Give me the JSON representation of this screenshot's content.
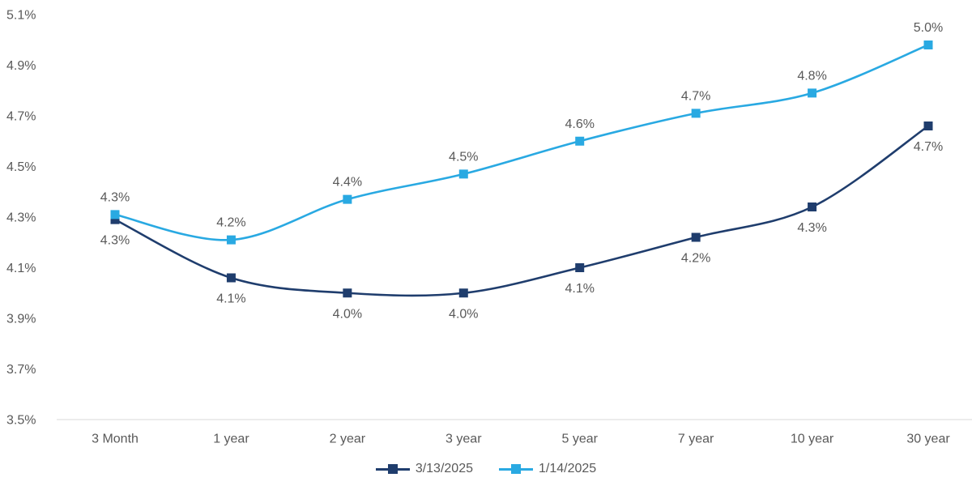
{
  "chart_data": {
    "type": "line",
    "title": "",
    "categories": [
      "3 Month",
      "1 year",
      "2 year",
      "3 year",
      "5 year",
      "7 year",
      "10 year",
      "30 year"
    ],
    "y_axis": {
      "tick_labels": [
        "3.5%",
        "3.7%",
        "3.9%",
        "4.1%",
        "4.3%",
        "4.5%",
        "4.7%",
        "4.9%",
        "5.1%"
      ],
      "min": 3.5,
      "max": 5.1,
      "tick_step": 0.2,
      "unit": "percent"
    },
    "grid": false,
    "series": [
      {
        "name": "3/13/2025",
        "color": "#1f3d6d",
        "marker": "square",
        "values": [
          4.29,
          4.06,
          4.0,
          4.0,
          4.1,
          4.22,
          4.34,
          4.66
        ],
        "point_labels": [
          "4.3%",
          "4.1%",
          "4.0%",
          "4.0%",
          "4.1%",
          "4.2%",
          "4.3%",
          "4.7%"
        ],
        "label_position": "below"
      },
      {
        "name": "1/14/2025",
        "color": "#29a9e2",
        "marker": "square",
        "values": [
          4.31,
          4.21,
          4.37,
          4.47,
          4.6,
          4.71,
          4.79,
          4.98
        ],
        "point_labels": [
          "4.3%",
          "4.2%",
          "4.4%",
          "4.5%",
          "4.6%",
          "4.7%",
          "4.8%",
          "5.0%"
        ],
        "label_position": "above"
      }
    ],
    "legend": {
      "position": "bottom-center",
      "entries": [
        "3/13/2025",
        "1/14/2025"
      ]
    }
  },
  "style": {
    "text_color": "#595959",
    "axis_line_color": "#d9d9d9",
    "background_color": "#ffffff"
  }
}
